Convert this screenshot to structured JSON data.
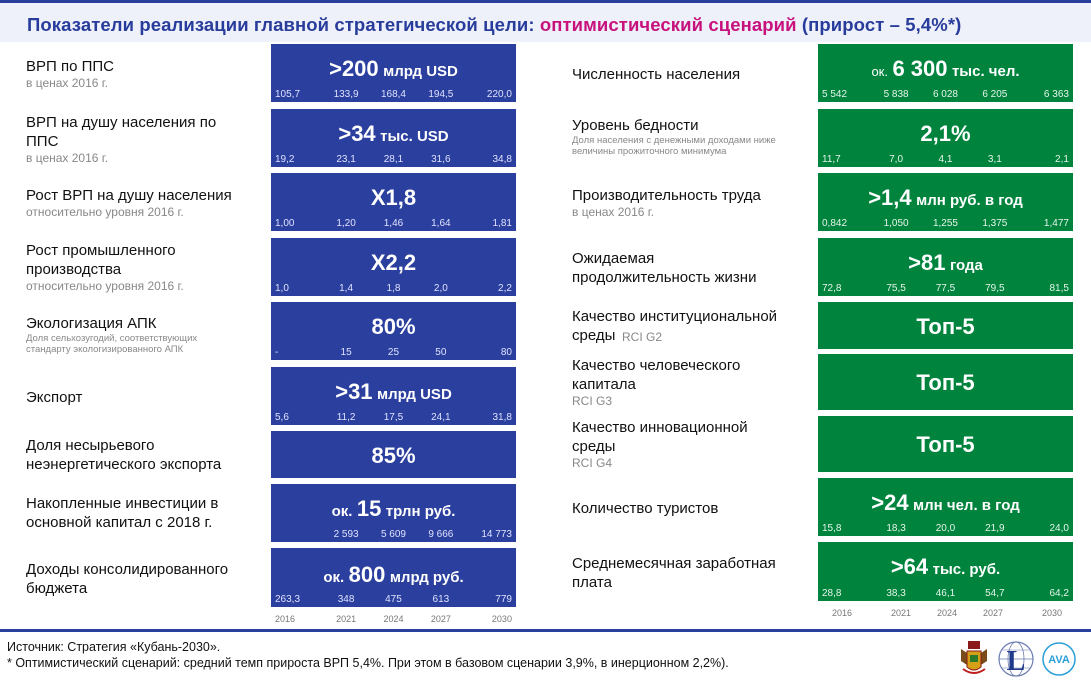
{
  "title": {
    "prefix": "Показатели реализации главной стратегической цели: ",
    "accent": "оптимистический сценарий",
    "suffix": " (прирост – 5,4%*)"
  },
  "colors": {
    "blue": "#2b3f9e",
    "green": "#00843d",
    "accent": "#c7127e"
  },
  "years": [
    "2016",
    "2021",
    "2024",
    "2027",
    "2030"
  ],
  "left": [
    {
      "label": "ВРП по ППС",
      "sub": "в ценах 2016 г.",
      "pre": "",
      "big": ">200",
      "unit": "млрд USD",
      "values": [
        "105,7",
        "133,9",
        "168,4",
        "194,5",
        "220,0"
      ]
    },
    {
      "label": "ВРП на душу населения по ППС",
      "sub": "в ценах 2016 г.",
      "pre": "",
      "big": ">34",
      "unit": "тыс. USD",
      "values": [
        "19,2",
        "23,1",
        "28,1",
        "31,6",
        "34,8"
      ]
    },
    {
      "label": "Рост ВРП на душу населения",
      "sub": "относительно уровня 2016 г.",
      "pre": "",
      "big": "X1,8",
      "unit": "",
      "values": [
        "1,00",
        "1,20",
        "1,46",
        "1,64",
        "1,81"
      ]
    },
    {
      "label": "Рост промышленного производства",
      "sub": "относительно уровня 2016 г.",
      "pre": "",
      "big": "X2,2",
      "unit": "",
      "values": [
        "1,0",
        "1,4",
        "1,8",
        "2,0",
        "2,2"
      ]
    },
    {
      "label": "Экологизация АПК",
      "sub": "Доля сельхозугодий,  соответствующих стандарту экологизированного  АПК",
      "pre": "",
      "big": "80%",
      "unit": "",
      "values": [
        "-",
        "15",
        "25",
        "50",
        "80"
      ]
    },
    {
      "label": "Экспорт",
      "sub": "",
      "pre": "",
      "big": ">31",
      "unit": "млрд USD",
      "values": [
        "5,6",
        "11,2",
        "17,5",
        "24,1",
        "31,8"
      ]
    },
    {
      "label": "Доля несырьевого неэнергетического экспорта",
      "sub": "",
      "pre": "",
      "big": "85%",
      "unit": "",
      "values": []
    },
    {
      "label": "Накопленные инвестиции в основной капитал с 2018 г.",
      "sub": "",
      "pre": "ок.",
      "big": "15",
      "unit": "трлн руб.",
      "values": [
        "",
        "2 593",
        "5 609",
        "9 666",
        "14 773"
      ]
    },
    {
      "label": "Доходы консолидированного бюджета",
      "sub": "",
      "pre": "ок.",
      "big": "800",
      "unit": "млрд руб.",
      "values": [
        "263,3",
        "348",
        "475",
        "613",
        "779"
      ]
    }
  ],
  "right": [
    {
      "label": "Численность населения",
      "sub": "",
      "pre": "ок.",
      "big": "6 300",
      "unit": "тыс. чел.",
      "values": [
        "5 542",
        "5 838",
        "6 028",
        "6 205",
        "6 363"
      ]
    },
    {
      "label": "Уровень бедности",
      "sub": "Доля населения с денежными доходами ниже величины прожиточного минимума",
      "pre": "",
      "big": "2,1%",
      "unit": "",
      "values": [
        "11,7",
        "7,0",
        "4,1",
        "3,1",
        "2,1"
      ]
    },
    {
      "label": "Производительность труда",
      "sub": "в ценах 2016 г.",
      "pre": "",
      "big": ">1,4",
      "unit": "млн руб. в год",
      "values": [
        "0,842",
        "1,050",
        "1,255",
        "1,375",
        "1,477"
      ]
    },
    {
      "label": "Ожидаемая продолжительность жизни",
      "sub": "",
      "pre": "",
      "big": ">81",
      "unit": "года",
      "values": [
        "72,8",
        "75,5",
        "77,5",
        "79,5",
        "81,5"
      ]
    },
    {
      "label": "Качество институциональной среды",
      "sub": "RCI G2",
      "pre": "",
      "big": "Топ-5",
      "unit": "",
      "values": []
    },
    {
      "label": "Качество человеческого капитала",
      "sub": "RCI G3",
      "pre": "",
      "big": "Топ-5",
      "unit": "",
      "values": []
    },
    {
      "label": "Качество инновационной среды",
      "sub": "RCI G4",
      "pre": "",
      "big": "Топ-5",
      "unit": "",
      "values": []
    },
    {
      "label": "Количество туристов",
      "sub": "",
      "pre": "",
      "big": ">24",
      "unit": "млн чел. в год",
      "values": [
        "15,8",
        "18,3",
        "20,0",
        "21,9",
        "24,0"
      ]
    },
    {
      "label": "Среднемесячная заработная плата",
      "sub": "",
      "pre": "",
      "big": ">64",
      "unit": "тыс. руб.",
      "values": [
        "28,8",
        "38,3",
        "46,1",
        "54,7",
        "64,2"
      ]
    }
  ],
  "footer": {
    "source": "Источник: Стратегия «Кубань-2030».",
    "note": "* Оптимистический сценарий: средний темп прироста ВРП 5,4%. При этом в базовом сценарии 3,9%, в инерционном 2,2%)."
  },
  "logos": [
    "krasnodar-coat-of-arms-logo",
    "globe-L-logo",
    "AVA-logo"
  ],
  "logo_texts": {
    "ava": "AVA",
    "globe": "L"
  }
}
